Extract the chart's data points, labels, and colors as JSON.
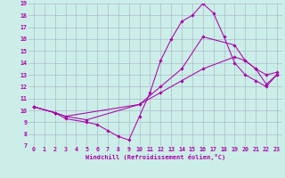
{
  "xlabel": "Windchill (Refroidissement éolien,°C)",
  "xlim": [
    -0.5,
    23.5
  ],
  "ylim": [
    7,
    19
  ],
  "xticks": [
    0,
    1,
    2,
    3,
    4,
    5,
    6,
    7,
    8,
    9,
    10,
    11,
    12,
    13,
    14,
    15,
    16,
    17,
    18,
    19,
    20,
    21,
    22,
    23
  ],
  "yticks": [
    7,
    8,
    9,
    10,
    11,
    12,
    13,
    14,
    15,
    16,
    17,
    18,
    19
  ],
  "background_color": "#cceee8",
  "grid_color": "#aabbcc",
  "line_color": "#aa00aa",
  "lines": [
    {
      "x": [
        0,
        2,
        3,
        5,
        6,
        7,
        8,
        9,
        10,
        11,
        12,
        13,
        14,
        15,
        16,
        17,
        18,
        19,
        20,
        21,
        22,
        23
      ],
      "y": [
        10.3,
        9.8,
        9.3,
        9.0,
        8.8,
        8.3,
        7.8,
        7.5,
        9.5,
        11.5,
        14.2,
        16.0,
        17.5,
        18.0,
        19.0,
        18.2,
        16.2,
        14.0,
        13.0,
        12.5,
        12.0,
        13.0
      ]
    },
    {
      "x": [
        0,
        2,
        3,
        10,
        12,
        14,
        16,
        19,
        20,
        21,
        22,
        23
      ],
      "y": [
        10.3,
        9.8,
        9.5,
        10.5,
        11.5,
        12.5,
        13.5,
        14.5,
        14.2,
        13.5,
        13.0,
        13.2
      ]
    },
    {
      "x": [
        0,
        2,
        3,
        5,
        10,
        12,
        14,
        16,
        19,
        20,
        21,
        22,
        23
      ],
      "y": [
        10.3,
        9.8,
        9.5,
        9.2,
        10.5,
        12.0,
        13.5,
        16.2,
        15.5,
        14.2,
        13.5,
        12.2,
        13.0
      ]
    }
  ]
}
